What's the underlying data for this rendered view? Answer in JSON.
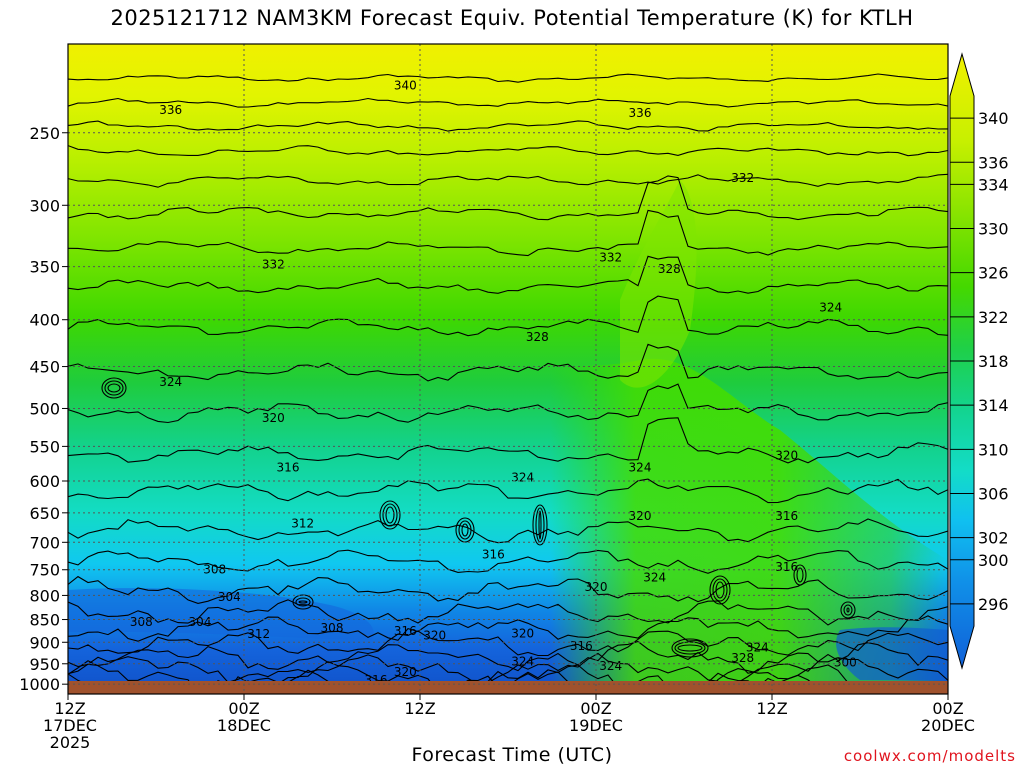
{
  "title": "2025121712 NAM3KM Forecast Equiv. Potential Temperature (K) for KTLH",
  "credit": "coolwx.com/modelts",
  "colors": {
    "terrain": "#a0522d",
    "contour": "#000000",
    "grid": "#555555"
  },
  "chart_data": {
    "type": "heatmap",
    "title": "2025121712 NAM3KM Forecast Equiv. Potential Temperature (K) for KTLH",
    "xlabel": "Forecast Time (UTC)",
    "ylabel": "",
    "xlim_hours": [
      0,
      60
    ],
    "ylim_hpa": [
      1025,
      200
    ],
    "y_scale": "log",
    "grid": true,
    "x_ticks": [
      {
        "hour": 0,
        "lines": [
          "12Z",
          "17DEC",
          "2025"
        ]
      },
      {
        "hour": 12,
        "lines": [
          "00Z",
          "18DEC"
        ]
      },
      {
        "hour": 24,
        "lines": [
          "12Z"
        ]
      },
      {
        "hour": 36,
        "lines": [
          "00Z",
          "19DEC"
        ]
      },
      {
        "hour": 48,
        "lines": [
          "12Z"
        ]
      },
      {
        "hour": 60,
        "lines": [
          "00Z",
          "20DEC"
        ]
      }
    ],
    "y_ticks": [
      250,
      300,
      350,
      400,
      450,
      500,
      550,
      600,
      650,
      700,
      750,
      800,
      850,
      900,
      950,
      1000
    ],
    "colorbar": {
      "labels": [
        340,
        336,
        334,
        330,
        326,
        322,
        318,
        314,
        310,
        306,
        302,
        300,
        296
      ],
      "range": [
        294,
        342
      ]
    },
    "contour_labels": [
      {
        "hour": 23,
        "p": 222,
        "text": "340"
      },
      {
        "hour": 7,
        "p": 236,
        "text": "336"
      },
      {
        "hour": 39,
        "p": 238,
        "text": "336"
      },
      {
        "hour": 46,
        "p": 280,
        "text": "332"
      },
      {
        "hour": 14,
        "p": 348,
        "text": "332"
      },
      {
        "hour": 37,
        "p": 342,
        "text": "332"
      },
      {
        "hour": 41,
        "p": 352,
        "text": "328"
      },
      {
        "hour": 52,
        "p": 388,
        "text": "324"
      },
      {
        "hour": 32,
        "p": 418,
        "text": "328"
      },
      {
        "hour": 7,
        "p": 468,
        "text": "324"
      },
      {
        "hour": 14,
        "p": 512,
        "text": "320"
      },
      {
        "hour": 15,
        "p": 580,
        "text": "316"
      },
      {
        "hour": 49,
        "p": 563,
        "text": "320"
      },
      {
        "hour": 31,
        "p": 595,
        "text": "324"
      },
      {
        "hour": 39,
        "p": 580,
        "text": "324"
      },
      {
        "hour": 16,
        "p": 668,
        "text": "312"
      },
      {
        "hour": 49,
        "p": 655,
        "text": "316"
      },
      {
        "hour": 39,
        "p": 655,
        "text": "320"
      },
      {
        "hour": 29,
        "p": 722,
        "text": "316"
      },
      {
        "hour": 49,
        "p": 745,
        "text": "316"
      },
      {
        "hour": 10,
        "p": 750,
        "text": "308"
      },
      {
        "hour": 40,
        "p": 765,
        "text": "324"
      },
      {
        "hour": 36,
        "p": 783,
        "text": "320"
      },
      {
        "hour": 11,
        "p": 803,
        "text": "304"
      },
      {
        "hour": 5,
        "p": 855,
        "text": "308"
      },
      {
        "hour": 9,
        "p": 855,
        "text": "304"
      },
      {
        "hour": 13,
        "p": 882,
        "text": "312"
      },
      {
        "hour": 18,
        "p": 868,
        "text": "308"
      },
      {
        "hour": 23,
        "p": 875,
        "text": "316"
      },
      {
        "hour": 25,
        "p": 885,
        "text": "320"
      },
      {
        "hour": 31,
        "p": 880,
        "text": "320"
      },
      {
        "hour": 35,
        "p": 908,
        "text": "316"
      },
      {
        "hour": 47,
        "p": 912,
        "text": "324"
      },
      {
        "hour": 46,
        "p": 936,
        "text": "328"
      },
      {
        "hour": 31,
        "p": 944,
        "text": "324"
      },
      {
        "hour": 37,
        "p": 955,
        "text": "324"
      },
      {
        "hour": 23,
        "p": 970,
        "text": "320"
      },
      {
        "hour": 21,
        "p": 990,
        "text": "316"
      },
      {
        "hour": 53,
        "p": 947,
        "text": "300"
      }
    ]
  }
}
